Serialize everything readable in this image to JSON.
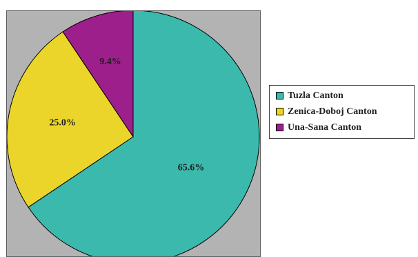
{
  "chart_data": {
    "type": "pie",
    "slices": [
      {
        "label": "Tuzla Canton",
        "value": 65.6,
        "display": "65.6%",
        "color": "#3bb9ac"
      },
      {
        "label": "Zenica-Doboj Canton",
        "value": 25.0,
        "display": "25.0%",
        "color": "#ecd52b"
      },
      {
        "label": "Una-Sana Canton",
        "value": 9.4,
        "display": "9.4%",
        "color": "#9c1f8c"
      }
    ],
    "start_angle_deg": 0,
    "direction": "clockwise",
    "plot_background": "#b3b3b3",
    "legend_placement": "right"
  }
}
